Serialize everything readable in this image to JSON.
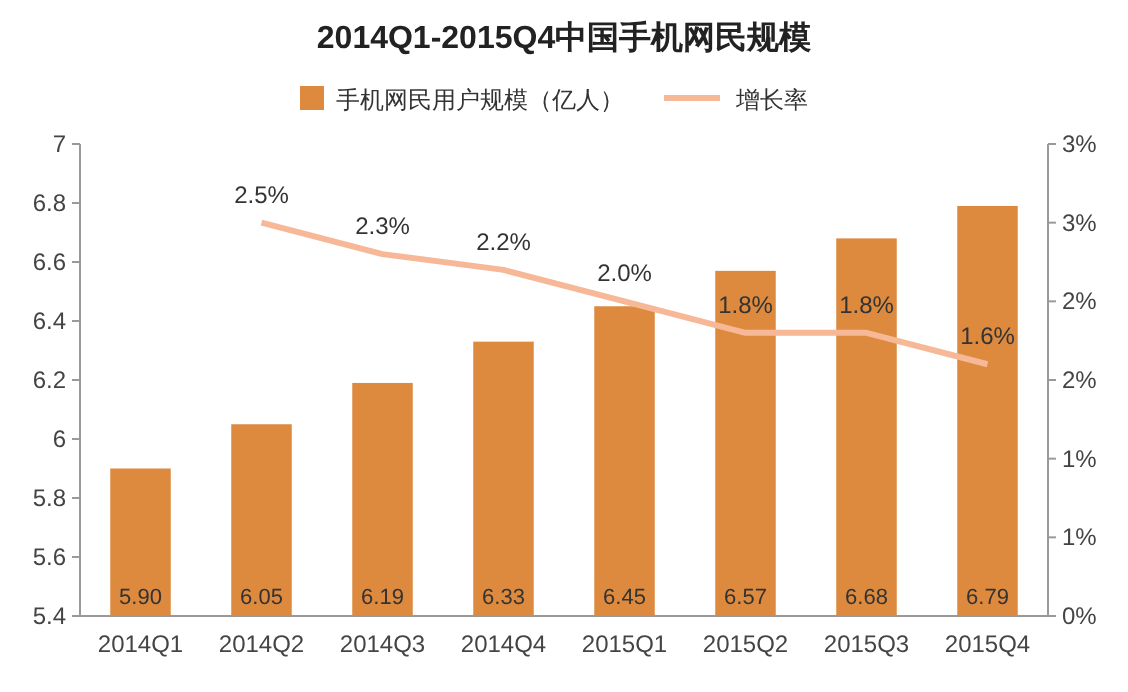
{
  "chart_data": {
    "type": "bar",
    "title": "2014Q1-2015Q4中国手机网民规模",
    "categories": [
      "2014Q1",
      "2014Q2",
      "2014Q3",
      "2014Q4",
      "2015Q1",
      "2015Q2",
      "2015Q3",
      "2015Q4"
    ],
    "series": [
      {
        "name": "手机网民用户规模（亿人）",
        "color": "#dd8a3e",
        "values": [
          5.9,
          6.05,
          6.19,
          6.33,
          6.45,
          6.57,
          6.68,
          6.79
        ],
        "value_labels": [
          "5.90",
          "6.05",
          "6.19",
          "6.33",
          "6.45",
          "6.57",
          "6.68",
          "6.79"
        ]
      },
      {
        "name": "增长率",
        "type": "line",
        "axis": "y2",
        "color": "#f6b896",
        "values": [
          null,
          2.5,
          2.3,
          2.2,
          2.0,
          1.8,
          1.8,
          1.6
        ],
        "value_labels": [
          null,
          "2.5%",
          "2.3%",
          "2.2%",
          "2.0%",
          "1.8%",
          "1.8%",
          "1.6%"
        ]
      }
    ],
    "ylim": [
      5.4,
      7
    ],
    "yticks": [
      5.4,
      5.6,
      5.8,
      6,
      6.2,
      6.4,
      6.6,
      6.8,
      7
    ],
    "y2lim": [
      0,
      3
    ],
    "y2ticks": [
      {
        "value": 0,
        "label": "0%"
      },
      {
        "value": 0.5,
        "label": "1%"
      },
      {
        "value": 1,
        "label": "1%"
      },
      {
        "value": 1.5,
        "label": "2%"
      },
      {
        "value": 2,
        "label": "2%"
      },
      {
        "value": 2.5,
        "label": "3%"
      },
      {
        "value": 3,
        "label": "3%"
      }
    ],
    "legend": "top",
    "grid": false
  }
}
